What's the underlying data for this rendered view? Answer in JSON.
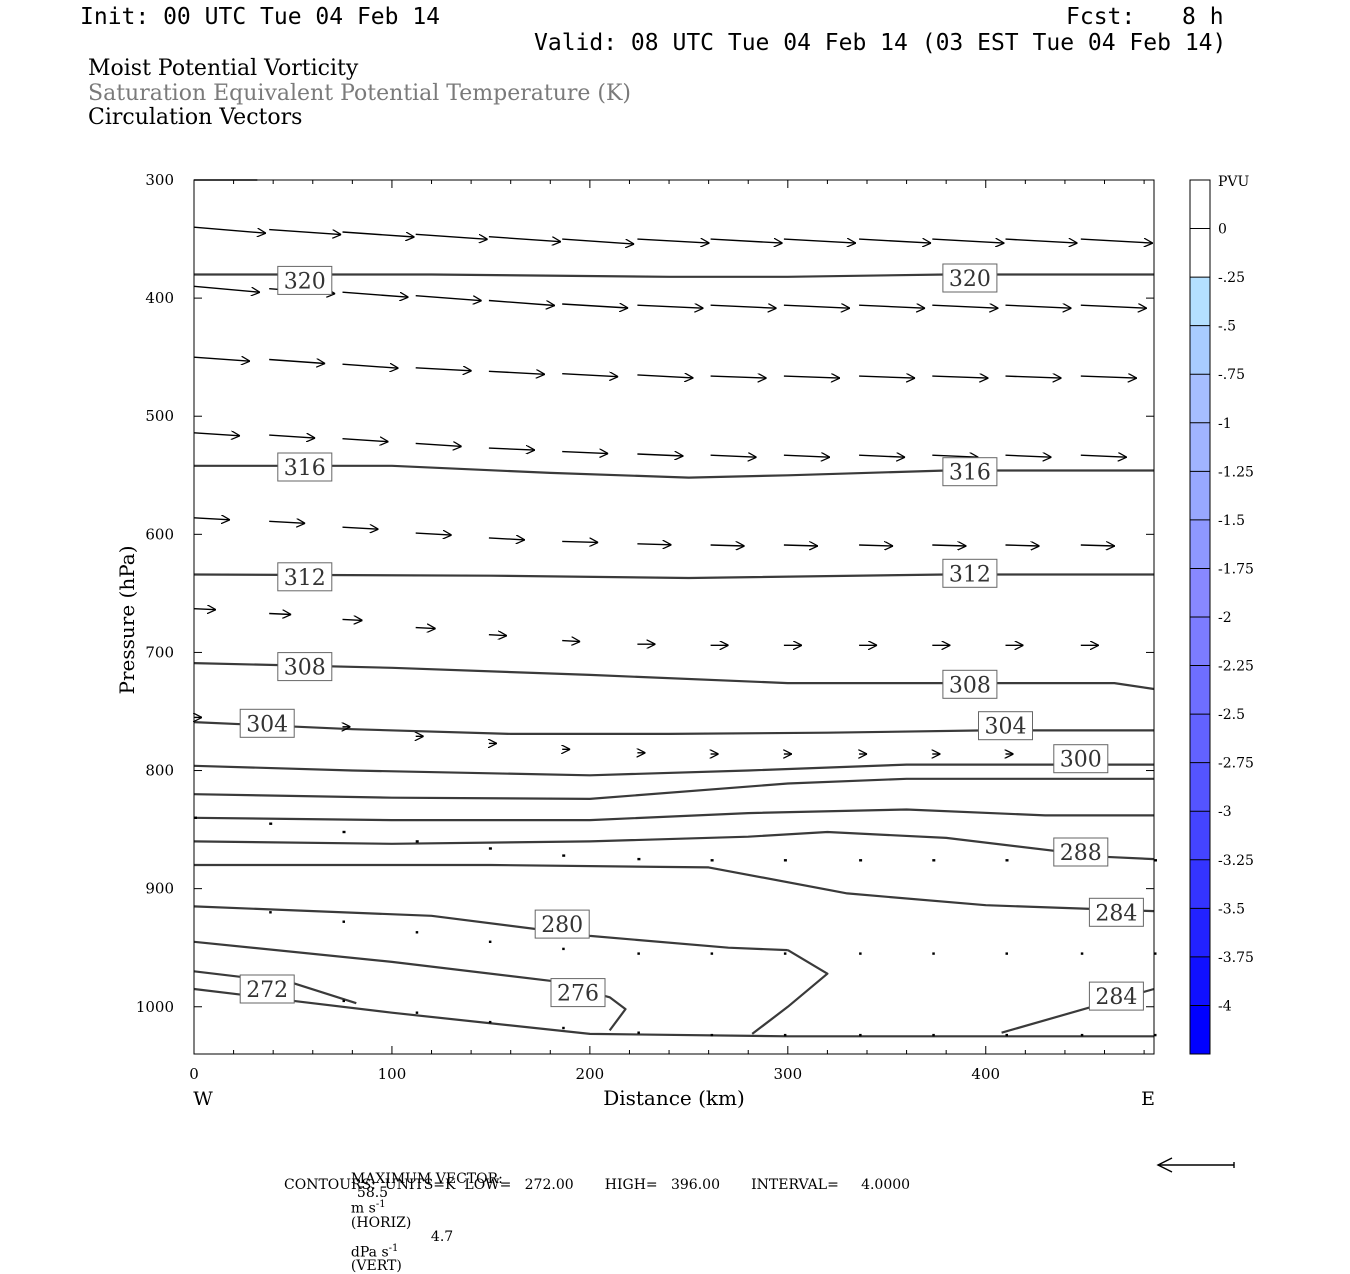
{
  "header": {
    "init": "Init: 00 UTC Tue 04 Feb 14",
    "fcst_label": "Fcst:",
    "fcst_value": "8 h",
    "valid": "Valid: 08 UTC Tue 04 Feb 14 (03 EST Tue 04 Feb 14)"
  },
  "titles": {
    "line1": "Moist Potential Vorticity",
    "line2": "Saturation Equivalent Potential Temperature (K)",
    "line3": "Circulation Vectors"
  },
  "footer": {
    "max_vector_label": "MAXIMUM VECTOR:",
    "horiz_value": "58.5",
    "horiz_unit": "m s",
    "horiz_tag": "(HORIZ)",
    "vert_value": "4.7",
    "vert_unit": "dPa s",
    "vert_tag": "(VERT)",
    "exponent": "-1",
    "contours_line": "CONTOURS:  UNITS=K  LOW=   272.00       HIGH=   396.00       INTERVAL=     4.0000"
  },
  "colors": {
    "contour": "#3a3a3a",
    "frame": "#000000",
    "vector": "#000000"
  },
  "chart_data": {
    "type": "line",
    "xlabel": "Distance (km)",
    "ylabel": "Pressure (hPa)",
    "xlim": [
      0,
      485
    ],
    "ylim": [
      1040,
      300
    ],
    "x_ticks": [
      "0",
      "100",
      "200",
      "300",
      "400"
    ],
    "y_ticks": [
      "300",
      "400",
      "500",
      "600",
      "700",
      "800",
      "900",
      "1000"
    ],
    "x_end_labels": {
      "left": "W",
      "right": "E"
    },
    "contour_labels": [
      {
        "text": "320",
        "x": 56,
        "p": 385
      },
      {
        "text": "320",
        "x": 392,
        "p": 383
      },
      {
        "text": "316",
        "x": 56,
        "p": 543
      },
      {
        "text": "316",
        "x": 392,
        "p": 547
      },
      {
        "text": "312",
        "x": 56,
        "p": 636
      },
      {
        "text": "312",
        "x": 392,
        "p": 633
      },
      {
        "text": "308",
        "x": 56,
        "p": 712
      },
      {
        "text": "308",
        "x": 392,
        "p": 727
      },
      {
        "text": "304",
        "x": 37,
        "p": 760
      },
      {
        "text": "304",
        "x": 410,
        "p": 762
      },
      {
        "text": "300",
        "x": 448,
        "p": 790
      },
      {
        "text": "288",
        "x": 448,
        "p": 869
      },
      {
        "text": "284",
        "x": 466,
        "p": 920
      },
      {
        "text": "280",
        "x": 186,
        "p": 930
      },
      {
        "text": "272",
        "x": 37,
        "p": 985
      },
      {
        "text": "276",
        "x": 194,
        "p": 988
      },
      {
        "text": "284",
        "x": 466,
        "p": 991
      }
    ],
    "contours": [
      {
        "x": [
          0,
          120,
          240,
          300,
          380,
          485
        ],
        "p": [
          380,
          380,
          382,
          382,
          380,
          380
        ]
      },
      {
        "x": [
          0,
          100,
          180,
          250,
          300,
          380,
          485
        ],
        "p": [
          542,
          542,
          548,
          552,
          550,
          546,
          546
        ]
      },
      {
        "x": [
          0,
          150,
          250,
          380,
          485
        ],
        "p": [
          634,
          635,
          637,
          634,
          634
        ]
      },
      {
        "x": [
          0,
          100,
          200,
          300,
          400,
          465,
          485
        ],
        "p": [
          709,
          713,
          719,
          726,
          726,
          726,
          731
        ]
      },
      {
        "x": [
          0,
          80,
          160,
          240,
          320,
          400,
          485
        ],
        "p": [
          759,
          765,
          769,
          769,
          768,
          766,
          766
        ]
      },
      {
        "x": [
          0,
          80,
          200,
          280,
          360,
          440,
          485
        ],
        "p": [
          796,
          800,
          804,
          800,
          795,
          795,
          795
        ]
      },
      {
        "x": [
          0,
          100,
          200,
          300,
          360,
          430,
          485
        ],
        "p": [
          820,
          823,
          824,
          811,
          807,
          807,
          807
        ]
      },
      {
        "x": [
          0,
          100,
          200,
          280,
          360,
          430,
          485
        ],
        "p": [
          840,
          842,
          842,
          836,
          833,
          838,
          838
        ]
      },
      {
        "x": [
          0,
          100,
          200,
          280,
          320,
          380,
          460,
          485
        ],
        "p": [
          860,
          862,
          860,
          856,
          852,
          857,
          873,
          875
        ]
      },
      {
        "x": [
          0,
          150,
          260,
          330,
          400,
          485
        ],
        "p": [
          880,
          880,
          882,
          904,
          914,
          919
        ]
      },
      {
        "x": [
          0,
          120,
          200,
          270,
          300
        ],
        "p": [
          915,
          923,
          940,
          950,
          952
        ]
      },
      {
        "x": [
          300,
          320,
          300,
          282
        ],
        "p": [
          952,
          972,
          1000,
          1023
        ]
      },
      {
        "x": [
          0,
          100,
          180,
          210,
          218,
          210
        ],
        "p": [
          945,
          962,
          978,
          992,
          1002,
          1020
        ]
      },
      {
        "x": [
          0,
          50,
          82
        ],
        "p": [
          970,
          980,
          997
        ]
      },
      {
        "x": [
          0,
          100,
          200,
          300,
          400,
          485
        ],
        "p": [
          985,
          1005,
          1023,
          1025,
          1025,
          1025
        ]
      },
      {
        "x": [
          408,
          485
        ],
        "p": [
          1022,
          985
        ]
      }
    ],
    "vector_rows": [
      {
        "p": [
          300,
          300
        ],
        "x": [
          0,
          32
        ],
        "u": [
          0,
          0
        ],
        "w": [
          0,
          0
        ],
        "style": "line"
      },
      {
        "x": [
          0,
          38,
          75,
          112,
          149,
          186,
          224,
          261,
          298,
          336,
          373,
          410,
          448
        ],
        "p": [
          340,
          342,
          344,
          346,
          348,
          350,
          350,
          350,
          350,
          350,
          350,
          350,
          350
        ],
        "u": [
          36,
          36,
          36,
          36,
          36,
          36,
          36,
          36,
          36,
          36,
          36,
          36,
          36
        ],
        "w": [
          0.6,
          0.5,
          0.5,
          0.5,
          0.5,
          0.5,
          0.4,
          0.4,
          0.4,
          0.4,
          0.4,
          0.4,
          0.4
        ]
      },
      {
        "x": [
          0,
          38,
          75,
          112,
          149,
          186,
          224,
          261,
          298,
          336,
          373,
          410,
          448
        ],
        "p": [
          390,
          392,
          395,
          398,
          402,
          405,
          406,
          406,
          406,
          406,
          406,
          406,
          406
        ],
        "u": [
          33,
          33,
          33,
          33,
          33,
          33,
          33,
          33,
          33,
          33,
          33,
          33,
          33
        ],
        "w": [
          0.6,
          0.5,
          0.5,
          0.5,
          0.5,
          0.4,
          0.3,
          0.3,
          0.3,
          0.3,
          0.3,
          0.3,
          0.3
        ]
      },
      {
        "x": [
          0,
          38,
          75,
          112,
          149,
          186,
          224,
          261,
          298,
          336,
          373,
          410,
          448
        ],
        "p": [
          450,
          452,
          456,
          459,
          462,
          464,
          465,
          466,
          466,
          466,
          466,
          466,
          466
        ],
        "u": [
          28,
          28,
          28,
          28,
          28,
          28,
          28,
          28,
          28,
          28,
          28,
          28,
          28
        ],
        "w": [
          0.4,
          0.4,
          0.4,
          0.3,
          0.3,
          0.3,
          0.3,
          0.2,
          0.2,
          0.2,
          0.2,
          0.2,
          0.2
        ]
      },
      {
        "x": [
          0,
          38,
          75,
          112,
          149,
          186,
          224,
          261,
          298,
          336,
          373,
          410,
          448
        ],
        "p": [
          514,
          516,
          519,
          523,
          527,
          530,
          532,
          533,
          533,
          533,
          533,
          533,
          533
        ],
        "u": [
          23,
          23,
          23,
          23,
          23,
          23,
          23,
          23,
          23,
          23,
          23,
          23,
          23
        ],
        "w": [
          0.3,
          0.3,
          0.3,
          0.3,
          0.2,
          0.2,
          0.2,
          0.2,
          0.2,
          0.2,
          0.2,
          0.2,
          0.2
        ]
      },
      {
        "x": [
          0,
          38,
          75,
          112,
          149,
          186,
          224,
          261,
          298,
          336,
          373,
          410,
          448
        ],
        "p": [
          586,
          589,
          594,
          599,
          603,
          606,
          608,
          609,
          609,
          609,
          609,
          609,
          609
        ],
        "u": [
          18,
          18,
          18,
          18,
          18,
          18,
          17,
          17,
          17,
          17,
          17,
          17,
          17
        ],
        "w": [
          0.2,
          0.2,
          0.2,
          0.2,
          0.2,
          0.1,
          0.1,
          0.1,
          0.1,
          0.1,
          0.1,
          0.1,
          0.1
        ]
      },
      {
        "x": [
          0,
          38,
          75,
          112,
          149,
          186,
          224,
          261,
          298,
          336,
          373,
          410,
          448
        ],
        "p": [
          663,
          667,
          672,
          679,
          685,
          690,
          693,
          694,
          694,
          694,
          694,
          694,
          694
        ],
        "u": [
          11,
          11,
          10,
          10,
          9,
          9,
          9,
          9,
          9,
          9,
          9,
          9,
          9
        ],
        "w": [
          0.1,
          0.1,
          0.1,
          0.1,
          0.1,
          0.1,
          0,
          0,
          0,
          0,
          0,
          0,
          0
        ]
      },
      {
        "x": [
          0,
          38,
          75,
          112,
          149,
          186,
          224,
          261,
          298,
          336,
          373,
          410,
          448
        ],
        "p": [
          755,
          759,
          763,
          771,
          777,
          782,
          785,
          786,
          786,
          786,
          786,
          786,
          786
        ],
        "u": [
          4,
          4,
          4,
          4,
          4,
          4,
          4,
          4,
          4,
          4,
          4,
          4,
          4
        ],
        "w": [
          0,
          0,
          0,
          0,
          0,
          0,
          0,
          0,
          0,
          0,
          0,
          0,
          0
        ]
      },
      {
        "x": [
          0,
          38,
          75,
          112,
          149,
          186,
          224,
          261,
          298,
          336,
          373,
          410,
          448,
          485
        ],
        "p": [
          840,
          845,
          852,
          860,
          866,
          872,
          875,
          876,
          876,
          876,
          876,
          876,
          876,
          876
        ],
        "u": [
          1.5,
          1.5,
          1.5,
          1.5,
          1.5,
          1.5,
          1.5,
          1.5,
          1.5,
          1.5,
          1.5,
          1.5,
          1.5,
          1.5
        ],
        "w": [
          0,
          0,
          0,
          0,
          0,
          0,
          0,
          0,
          0,
          0,
          0,
          0,
          0,
          0
        ]
      },
      {
        "x": [
          38,
          75,
          112,
          149,
          186,
          224,
          261,
          298,
          336,
          373,
          410,
          448,
          485
        ],
        "p": [
          920,
          928,
          937,
          945,
          951,
          955,
          955,
          955,
          955,
          955,
          955,
          955,
          955
        ],
        "u": [
          1,
          1,
          1,
          1,
          1,
          1,
          1,
          1,
          1,
          1,
          1,
          1,
          1
        ],
        "w": [
          0,
          0,
          0,
          0,
          0,
          0,
          0,
          0,
          0,
          0,
          0,
          0,
          0
        ]
      },
      {
        "x": [
          75,
          112,
          149,
          186,
          224,
          261,
          298,
          336,
          373,
          410,
          448,
          485
        ],
        "p": [
          995,
          1005,
          1013,
          1018,
          1022,
          1024,
          1024,
          1024,
          1024,
          1024,
          1024,
          1024
        ],
        "u": [
          0.8,
          0.8,
          0.8,
          0.8,
          0.8,
          0.8,
          0.8,
          0.8,
          0.8,
          0.8,
          0.8,
          0.8
        ],
        "w": [
          0,
          0,
          0,
          0,
          0,
          0,
          0,
          0,
          0,
          0,
          0,
          0
        ]
      }
    ],
    "colorbar": {
      "title": "PVU",
      "labels": [
        "0",
        "-.25",
        "-.5",
        "-.75",
        "-1",
        "-1.25",
        "-1.5",
        "-1.75",
        "-2",
        "-2.25",
        "-2.5",
        "-2.75",
        "-3",
        "-3.25",
        "-3.5",
        "-3.75",
        "-4"
      ],
      "colors": [
        "#ffffff",
        "#ffffff",
        "#b4e0ff",
        "#a8ccff",
        "#a6beff",
        "#a0b4ff",
        "#98a8ff",
        "#8e98ff",
        "#8888ff",
        "#7c7cff",
        "#6e6eff",
        "#6262ff",
        "#5454ff",
        "#4444ff",
        "#3434ff",
        "#2222ff",
        "#1010ff",
        "#0000ff"
      ]
    }
  }
}
